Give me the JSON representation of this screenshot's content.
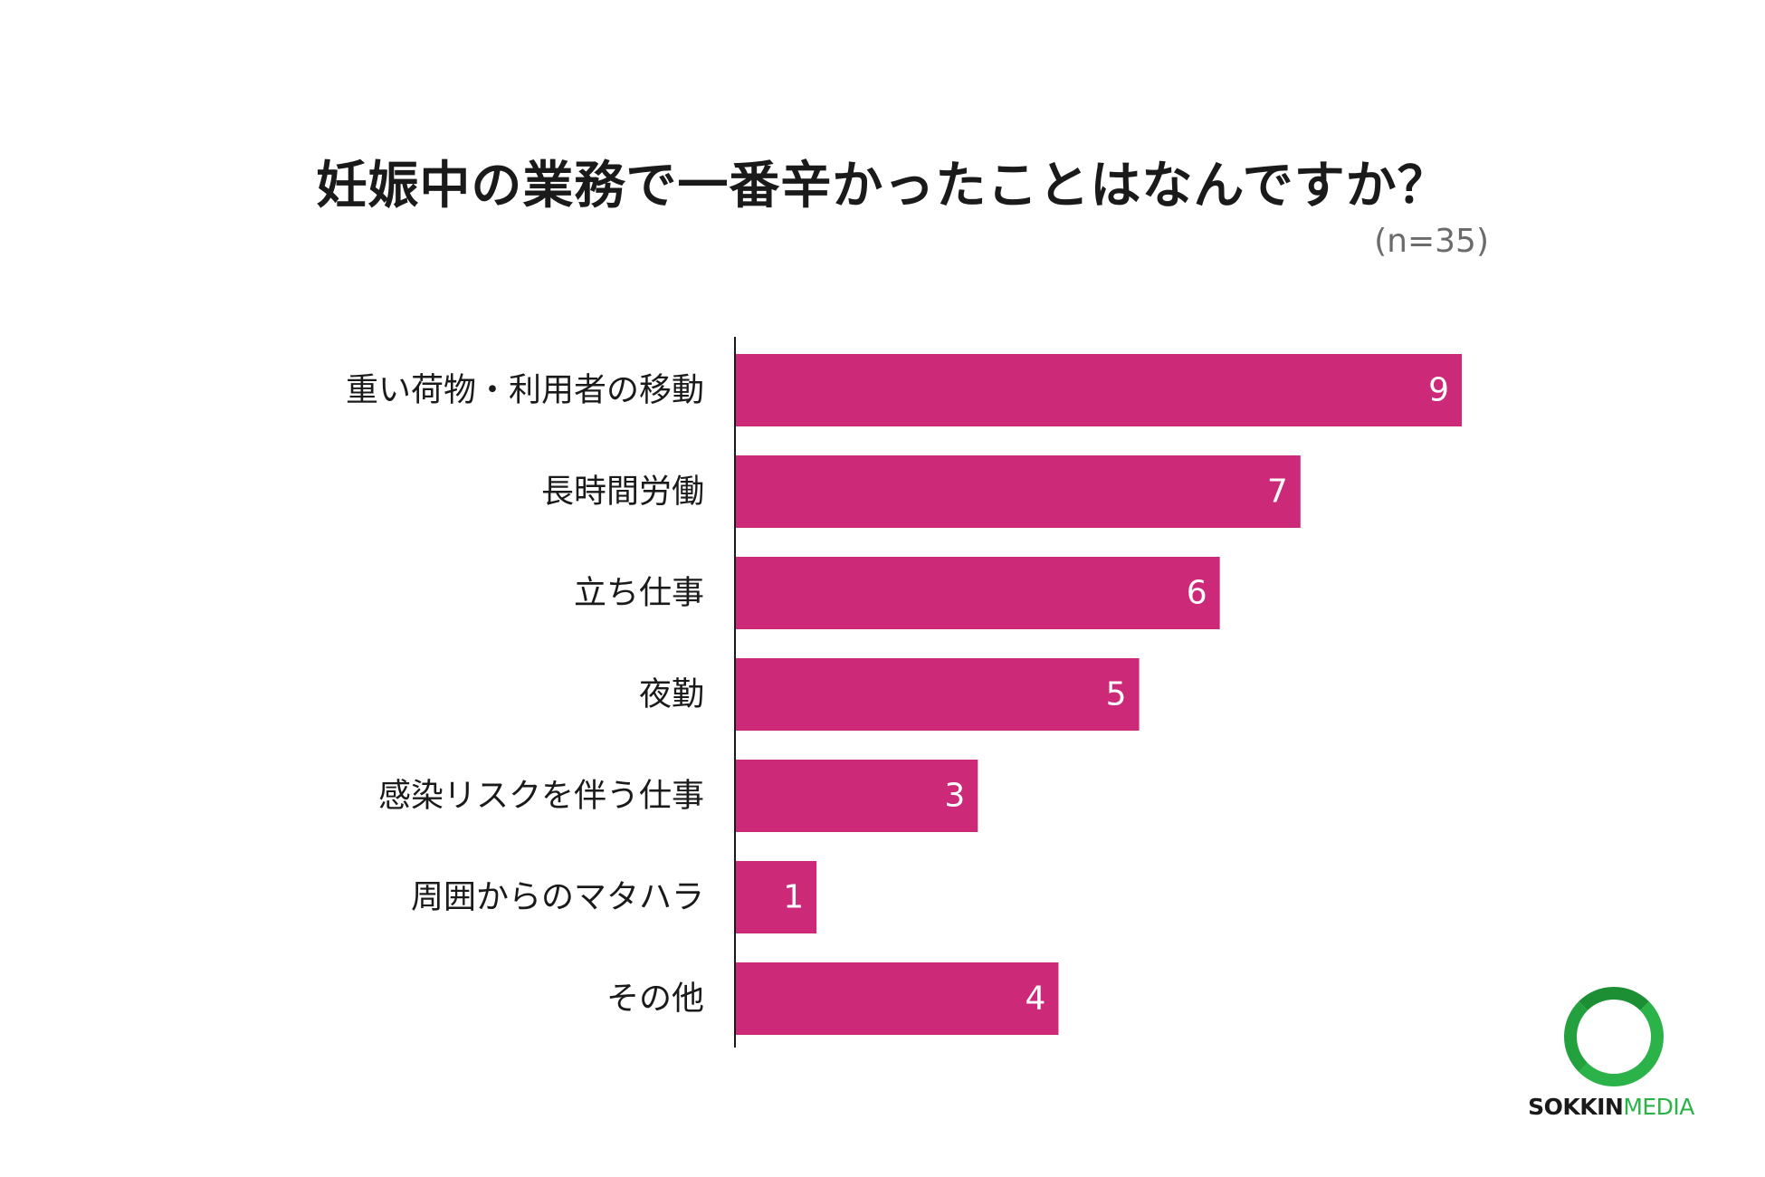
{
  "chart_data": {
    "type": "bar",
    "orientation": "horizontal",
    "title": "妊娠中の業務で一番辛かったことはなんですか？",
    "subtitle": "(n=35)",
    "categories": [
      "重い荷物・利用者の移動",
      "長時間労働",
      "立ち仕事",
      "夜勤",
      "感染リスクを伴う仕事",
      "周囲からのマタハラ",
      "その他"
    ],
    "values": [
      9,
      7,
      6,
      5,
      3,
      1,
      4
    ],
    "xlim": [
      0,
      9
    ],
    "grid": false,
    "legend": "none",
    "bar_color": "#cc2a78"
  },
  "logo": {
    "text_part1": "SOKKIN",
    "text_part2": "MEDIA",
    "ring_color": "#2bb34a"
  }
}
